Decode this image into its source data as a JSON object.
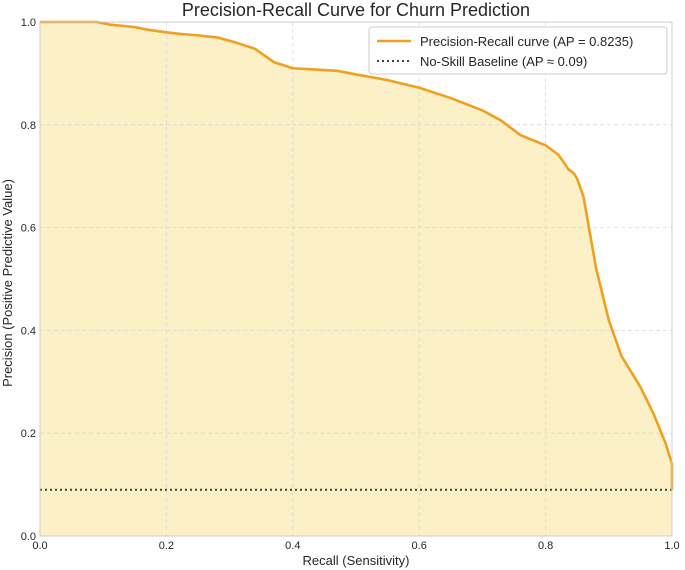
{
  "chart_data": {
    "type": "line",
    "title": "Precision-Recall Curve for Churn Prediction",
    "xlabel": "Recall (Sensitivity)",
    "ylabel": "Precision (Positive Predictive Value)",
    "xlim": [
      0,
      1
    ],
    "ylim": [
      0,
      1
    ],
    "x_ticks": [
      "0.0",
      "0.2",
      "0.4",
      "0.6",
      "0.8",
      "1.0"
    ],
    "y_ticks": [
      "0.0",
      "0.2",
      "0.4",
      "0.6",
      "0.8",
      "1.0"
    ],
    "grid": true,
    "legend_position": "top-right",
    "series": [
      {
        "name": "Precision-Recall curve (AP = 0.8235)",
        "color": "#f0a020",
        "fill_color": "#fbf0c6",
        "style": "solid",
        "x": [
          0.0,
          0.05,
          0.09,
          0.11,
          0.15,
          0.17,
          0.2,
          0.22,
          0.25,
          0.28,
          0.31,
          0.34,
          0.355,
          0.37,
          0.4,
          0.43,
          0.47,
          0.5,
          0.55,
          0.6,
          0.65,
          0.7,
          0.73,
          0.76,
          0.8,
          0.82,
          0.83,
          0.835,
          0.84,
          0.845,
          0.85,
          0.86,
          0.87,
          0.88,
          0.9,
          0.92,
          0.95,
          0.97,
          0.98,
          0.99,
          1.0,
          1.0
        ],
        "y": [
          1.0,
          1.0,
          1.0,
          0.995,
          0.99,
          0.985,
          0.98,
          0.977,
          0.974,
          0.97,
          0.96,
          0.948,
          0.935,
          0.922,
          0.91,
          0.908,
          0.905,
          0.898,
          0.887,
          0.872,
          0.852,
          0.828,
          0.808,
          0.78,
          0.76,
          0.742,
          0.725,
          0.715,
          0.71,
          0.705,
          0.695,
          0.66,
          0.59,
          0.52,
          0.42,
          0.35,
          0.29,
          0.24,
          0.21,
          0.18,
          0.14,
          0.09
        ]
      },
      {
        "name": "No-Skill Baseline (AP ≈ 0.09)",
        "color": "#404040",
        "style": "dotted",
        "x": [
          0,
          1
        ],
        "y": [
          0.09,
          0.09
        ]
      }
    ]
  }
}
